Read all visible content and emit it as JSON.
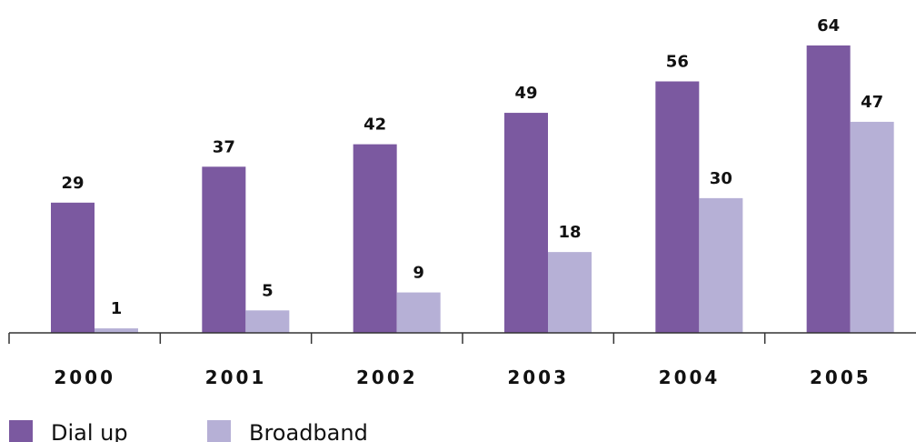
{
  "chart_data": {
    "type": "bar",
    "categories": [
      "2000",
      "2001",
      "2002",
      "2003",
      "2004",
      "2005"
    ],
    "series": [
      {
        "name": "Dial up",
        "values": [
          29,
          37,
          42,
          49,
          56,
          64
        ],
        "color": "#7b59a0"
      },
      {
        "name": "Broadband",
        "values": [
          1,
          5,
          9,
          18,
          30,
          47
        ],
        "color": "#b6b0d6"
      }
    ],
    "title": "",
    "xlabel": "",
    "ylabel": "",
    "ylim": [
      0,
      64
    ],
    "grid": false,
    "legend": "bottom-left",
    "axis_color": "#333333"
  }
}
